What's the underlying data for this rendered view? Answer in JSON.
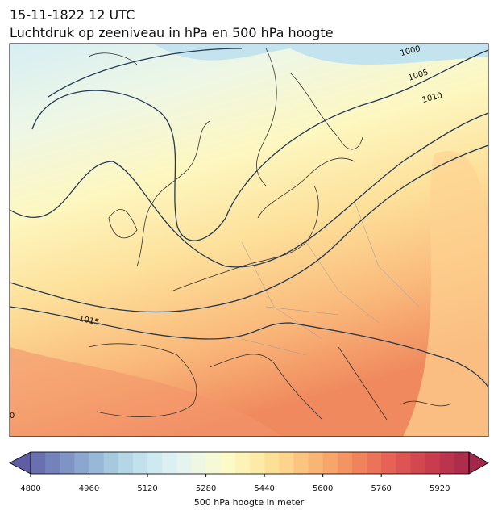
{
  "title": "15-11-1822 12 UTC",
  "subtitle": "Luchtdruk op zeeniveau in hPa en 500 hPa hoogte",
  "contour_labels": [
    1000,
    1005,
    1010,
    1015,
    0
  ],
  "colorbar": {
    "label": "500 hPa hoogte in meter",
    "range": [
      4800,
      6000
    ],
    "ticks": [
      4800,
      4960,
      5120,
      5280,
      5440,
      5600,
      5760,
      5920
    ],
    "colors": [
      "#6a6fb0",
      "#7482bb",
      "#7f94c5",
      "#8ba6cf",
      "#98b8d8",
      "#a6c9e0",
      "#b4d6e7",
      "#c2e1ed",
      "#cfe9f1",
      "#dbf0f3",
      "#e6f4ef",
      "#eef7e4",
      "#f6f9d6",
      "#fcfac6",
      "#fdf3b6",
      "#fdeaa6",
      "#fde098",
      "#fcd48b",
      "#fbc57f",
      "#f9b574",
      "#f7a56a",
      "#f49462",
      "#f0835c",
      "#eb7357",
      "#e46354",
      "#dc5552",
      "#d2484f",
      "#c73d4d",
      "#bb344d",
      "#ae2c4c"
    ],
    "under_color": "#5f5ea5",
    "over_color": "#a2284b"
  }
}
